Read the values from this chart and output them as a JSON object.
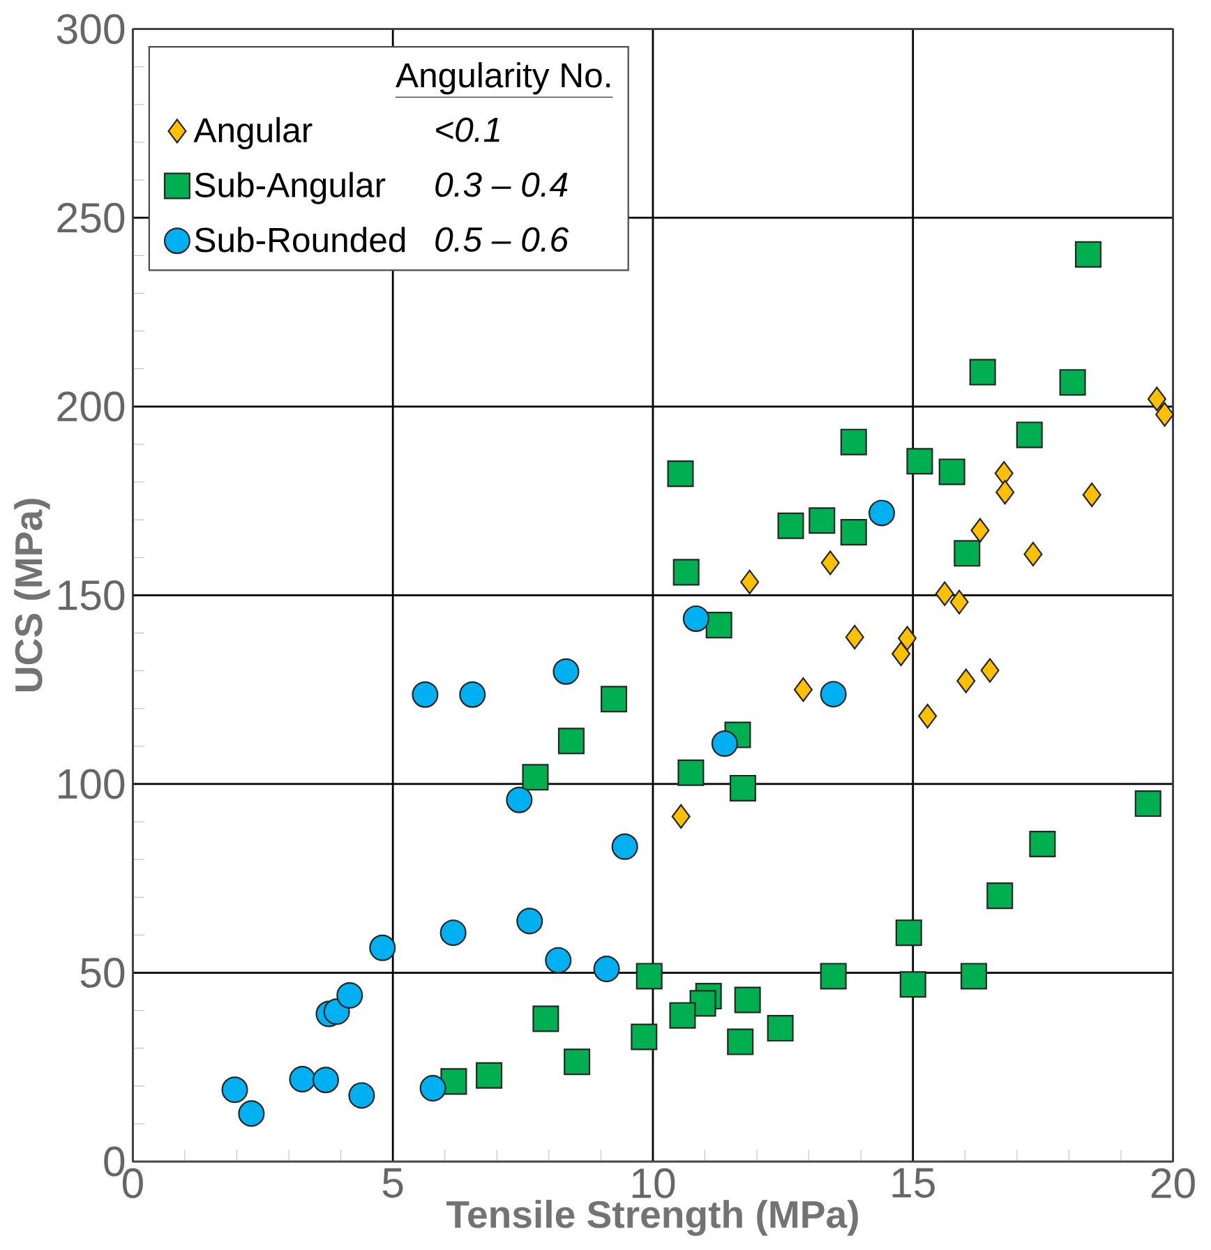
{
  "chart_data": {
    "type": "scatter",
    "xlabel": "Tensile Strength (MPa)",
    "ylabel": "UCS (MPa)",
    "xlim": [
      0,
      20
    ],
    "xticks": [
      0,
      5,
      10,
      15,
      20
    ],
    "ylim": [
      0,
      300
    ],
    "yticks": [
      0,
      50,
      100,
      150,
      200,
      250,
      300
    ],
    "grid": true,
    "legend": "top left",
    "legend_title": "Angularity No.",
    "annotations": [
      "*<0.1*",
      "*0.3 – 0.4*",
      "*0.5 – 0.6*"
    ],
    "series": [
      {
        "name": "Angular",
        "color": "#ffc000",
        "marker": "diamond",
        "x": [
          11.86,
          13.41,
          16.75,
          16.77,
          18.44,
          16.29,
          17.31,
          19.69,
          19.84,
          15.61,
          15.89,
          13.88,
          14.89,
          14.77,
          12.89,
          16.02,
          16.48,
          15.28,
          10.54
        ],
        "values": [
          153.5,
          158.6,
          182.3,
          177.3,
          176.6,
          167.2,
          160.9,
          202.0,
          197.9,
          150.4,
          148.2,
          138.9,
          138.6,
          134.5,
          125.0,
          127.3,
          130.1,
          118.0,
          91.4
        ]
      },
      {
        "name": "Sub-Angular",
        "color": "#00b050",
        "marker": "square",
        "x": [
          18.37,
          16.34,
          18.07,
          17.24,
          13.86,
          10.53,
          15.13,
          15.75,
          12.65,
          13.25,
          13.86,
          16.04,
          10.64,
          11.27,
          11.63,
          10.73,
          11.73,
          19.52,
          17.49,
          16.67,
          14.92,
          9.93,
          13.47,
          15.0,
          16.17,
          11.07,
          10.96,
          10.57,
          11.82,
          12.45,
          11.68,
          9.83,
          9.25,
          8.43,
          7.74,
          7.94,
          8.54,
          6.85,
          6.17
        ],
        "values": [
          240.3,
          209.1,
          206.4,
          192.5,
          190.6,
          182.2,
          185.5,
          182.7,
          168.4,
          169.8,
          166.7,
          161.1,
          156.1,
          142.1,
          113.0,
          103.0,
          98.9,
          94.8,
          84.1,
          70.4,
          60.6,
          49.1,
          49.1,
          46.9,
          49.1,
          43.8,
          41.9,
          38.7,
          42.8,
          35.3,
          31.7,
          33.0,
          122.5,
          111.4,
          101.8,
          37.8,
          26.4,
          22.8,
          21.2
        ]
      },
      {
        "name": "Sub-Rounded",
        "color": "#00b0f0",
        "marker": "circle",
        "x": [
          1.96,
          2.28,
          3.26,
          3.71,
          3.77,
          3.92,
          4.17,
          4.4,
          4.8,
          5.77,
          5.62,
          6.53,
          8.33,
          7.43,
          9.46,
          6.16,
          7.63,
          8.18,
          9.11,
          10.83,
          11.38,
          13.47,
          14.4
        ],
        "values": [
          19.0,
          12.7,
          21.8,
          21.6,
          39.1,
          39.7,
          44.0,
          17.5,
          56.6,
          19.4,
          123.7,
          123.7,
          129.8,
          95.8,
          83.4,
          60.6,
          63.7,
          53.3,
          51.0,
          143.8,
          110.7,
          123.8,
          171.8
        ]
      }
    ]
  }
}
